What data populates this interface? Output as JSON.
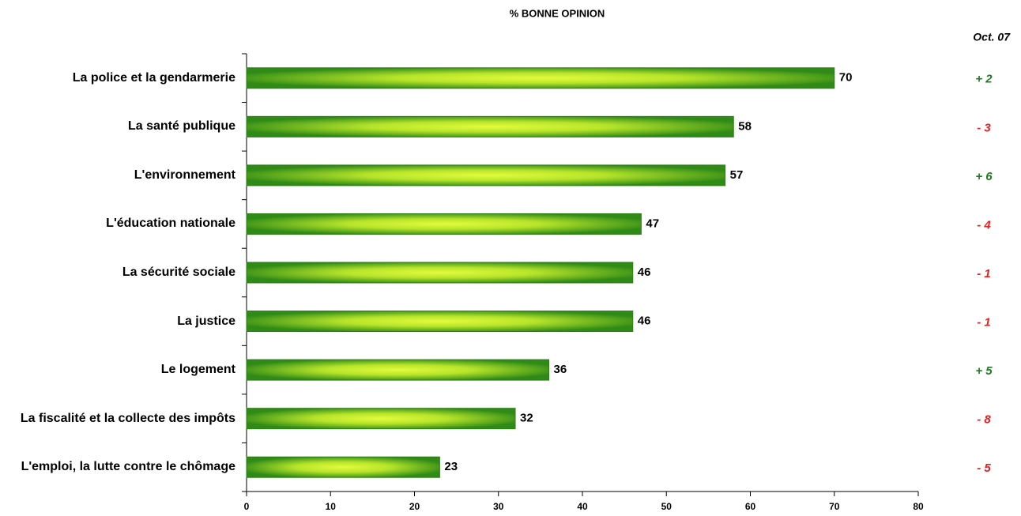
{
  "chart_data": {
    "type": "bar",
    "orientation": "horizontal",
    "title": "% BONNE OPINION",
    "categories": [
      "La police et la gendarmerie",
      "La santé publique",
      "L'environnement",
      "L'éducation nationale",
      "La sécurité sociale",
      "La justice",
      "Le logement",
      "La fiscalité et la collecte des impôts",
      "L'emploi, la lutte contre le chômage"
    ],
    "values": [
      70,
      58,
      57,
      47,
      46,
      46,
      36,
      32,
      23
    ],
    "color": "#c6ee2c",
    "xlim": [
      0,
      80
    ],
    "xticks": [
      0,
      10,
      20,
      30,
      40,
      50,
      60,
      70,
      80
    ],
    "grid": false,
    "comparison": {
      "title": "Oct. 07",
      "values": [
        2,
        -3,
        6,
        -4,
        -1,
        -1,
        5,
        -8,
        -5
      ],
      "value_labels": [
        "+ 2",
        "- 3",
        "+ 6",
        "- 4",
        "- 1",
        "- 1",
        "+ 5",
        "- 8",
        "- 5"
      ],
      "positive_color": "#1e7a1e",
      "negative_color": "#ee1c1c"
    }
  }
}
